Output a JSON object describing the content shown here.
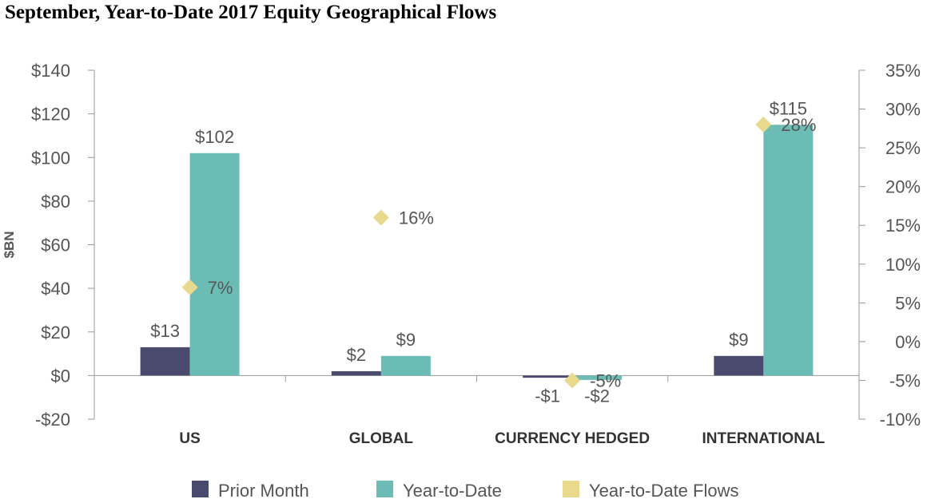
{
  "title": "September, Year-to-Date 2017 Equity Geographical Flows",
  "chart_data": {
    "type": "bar",
    "categories": [
      "US",
      "GLOBAL",
      "CURRENCY HEDGED",
      "INTERNATIONAL"
    ],
    "series": [
      {
        "name": "Prior Month",
        "type": "bar",
        "axis": "left",
        "color": "#4a4a6e",
        "values": [
          13,
          2,
          -1,
          9
        ],
        "labels": [
          "$13",
          "$2",
          "-$1",
          "$9"
        ]
      },
      {
        "name": "Year-to-Date",
        "type": "bar",
        "axis": "left",
        "color": "#6cbcb6",
        "values": [
          102,
          9,
          -2,
          115
        ],
        "labels": [
          "$102",
          "$9",
          "-$2",
          "$115"
        ]
      },
      {
        "name": "Year-to-Date Flows",
        "type": "scatter",
        "marker": "diamond",
        "axis": "right",
        "color": "#e8d98c",
        "values": [
          7,
          16,
          -5,
          28
        ],
        "labels": [
          "7%",
          "16%",
          "-5%",
          "28%"
        ]
      }
    ],
    "y_left": {
      "label": "$BN",
      "range": [
        -20,
        140
      ],
      "ticks": [
        -20,
        0,
        20,
        40,
        60,
        80,
        100,
        120,
        140
      ],
      "tick_labels": [
        "-$20",
        "$0",
        "$20",
        "$40",
        "$60",
        "$80",
        "$100",
        "$120",
        "$140"
      ]
    },
    "y_right": {
      "label": "",
      "range": [
        -10,
        35
      ],
      "ticks": [
        -10,
        -5,
        0,
        5,
        10,
        15,
        20,
        25,
        30,
        35
      ],
      "tick_labels": [
        "-10%",
        "-5%",
        "0%",
        "5%",
        "10%",
        "15%",
        "20%",
        "25%",
        "30%",
        "35%"
      ]
    },
    "grid": false,
    "legend_position": "bottom"
  }
}
